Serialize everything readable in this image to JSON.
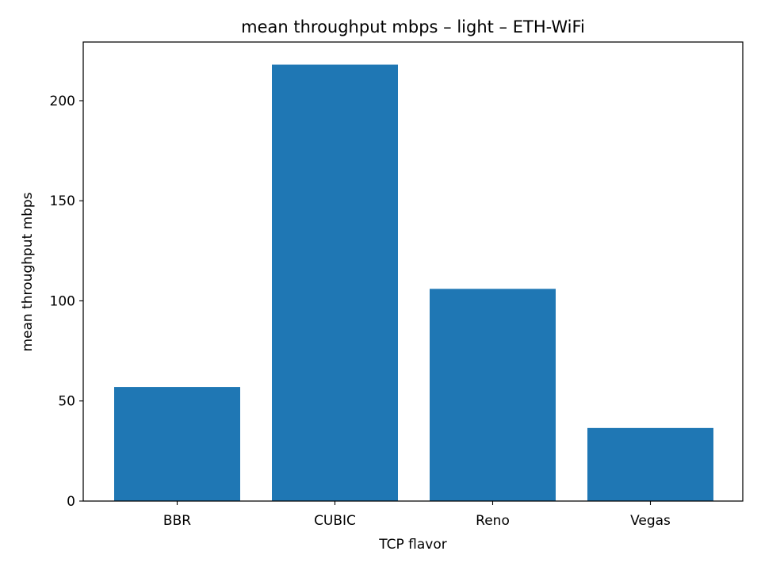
{
  "chart_data": {
    "type": "bar",
    "title": "mean throughput mbps – light – ETH-WiFi",
    "xlabel": "TCP flavor",
    "ylabel": "mean throughput mbps",
    "categories": [
      "BBR",
      "CUBIC",
      "Reno",
      "Vegas"
    ],
    "values": [
      57,
      218,
      106,
      36.5
    ],
    "ylim": [
      0,
      229.3
    ],
    "yticks": [
      0,
      50,
      100,
      150,
      200
    ],
    "grid": false,
    "legend": "none",
    "bar_color": "#1f77b4"
  }
}
